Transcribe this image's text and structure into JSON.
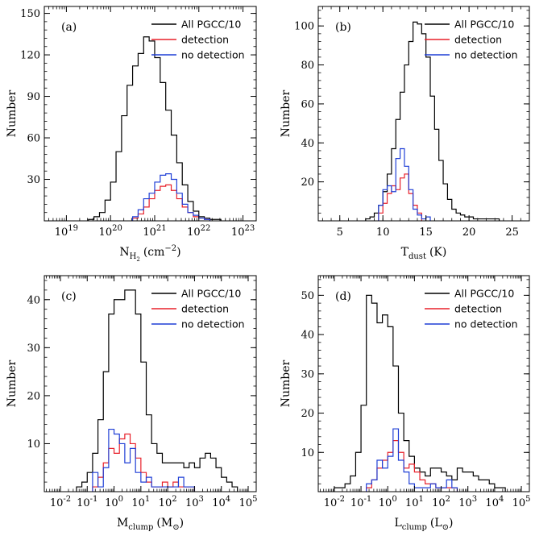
{
  "chart_data": [
    {
      "type": "step-histogram",
      "panel": "(a)",
      "xlabel": "N_{H2} (cm^{-2})",
      "xlabel_main": "N",
      "xlabel_sub": "H",
      "xlabel_subsub": "2",
      "xlabel_unit": "(cm",
      "xlabel_unit_sup": "−2",
      "xlabel_unit_close": ")",
      "ylabel": "Number",
      "x_scale": "log",
      "xlim_log10": [
        18.5,
        23.3
      ],
      "ylim": [
        0,
        155
      ],
      "x_ticks": [
        {
          "base": "10",
          "exp": "19",
          "log10": 19
        },
        {
          "base": "10",
          "exp": "20",
          "log10": 20
        },
        {
          "base": "10",
          "exp": "21",
          "log10": 21
        },
        {
          "base": "10",
          "exp": "22",
          "log10": 22
        },
        {
          "base": "10",
          "exp": "23",
          "log10": 23
        }
      ],
      "y_ticks": [
        "30",
        "60",
        "90",
        "120",
        "150"
      ],
      "y_tick_values": [
        30,
        60,
        90,
        120,
        150
      ],
      "bin_width_log10": 0.125,
      "series": [
        {
          "name": "All PGCC/10",
          "color": "#000000",
          "start_log10": 19.5,
          "values": [
            1,
            3,
            6,
            15,
            28,
            50,
            76,
            98,
            112,
            121,
            133,
            130,
            118,
            100,
            80,
            62,
            42,
            26,
            14,
            7,
            3,
            2,
            1,
            1
          ]
        },
        {
          "name": "detection",
          "color": "#e8202a",
          "start_log10": 20.5,
          "values": [
            2,
            5,
            10,
            16,
            22,
            25,
            26,
            22,
            16,
            10,
            6,
            3,
            2,
            1
          ]
        },
        {
          "name": "no detection",
          "color": "#1f3fd6",
          "start_log10": 20.5,
          "values": [
            3,
            8,
            16,
            20,
            28,
            33,
            34,
            30,
            20,
            12,
            6,
            4,
            2,
            1
          ]
        }
      ],
      "legend": [
        "All PGCC/10",
        "detection",
        "no detection"
      ],
      "legend_position": "top-right"
    },
    {
      "type": "step-histogram",
      "panel": "(b)",
      "xlabel": "T_{dust} (K)",
      "xlabel_main": "T",
      "xlabel_sub": "dust",
      "xlabel_unit": "(K)",
      "ylabel": "Number",
      "x_scale": "linear",
      "xlim": [
        2.5,
        27
      ],
      "ylim": [
        0,
        110
      ],
      "x_ticks": [
        "5",
        "10",
        "15",
        "20",
        "25"
      ],
      "x_tick_values": [
        5,
        10,
        15,
        20,
        25
      ],
      "y_ticks": [
        "20",
        "40",
        "60",
        "80",
        "100"
      ],
      "y_tick_values": [
        20,
        40,
        60,
        80,
        100
      ],
      "bin_width": 0.5,
      "series": [
        {
          "name": "All PGCC/10",
          "color": "#000000",
          "start": 8,
          "values": [
            1,
            2,
            4,
            8,
            15,
            24,
            37,
            52,
            66,
            80,
            92,
            102,
            101,
            96,
            84,
            64,
            47,
            31,
            19,
            11,
            6,
            4,
            3,
            2,
            2,
            1,
            1,
            1,
            1,
            1,
            1
          ]
        },
        {
          "name": "detection",
          "color": "#e8202a",
          "start": 9.5,
          "values": [
            4,
            9,
            14,
            18,
            16,
            22,
            24,
            14,
            8,
            4
          ]
        },
        {
          "name": "no detection",
          "color": "#1f3fd6",
          "start": 9.5,
          "values": [
            8,
            16,
            18,
            15,
            32,
            37,
            28,
            16,
            6,
            3,
            1,
            2
          ]
        }
      ],
      "legend": [
        "All PGCC/10",
        "detection",
        "no detection"
      ],
      "legend_position": "top-right"
    },
    {
      "type": "step-histogram",
      "panel": "(c)",
      "xlabel": "M_{clump} (M_⊙)",
      "xlabel_main": "M",
      "xlabel_sub": "clump",
      "xlabel_unit": "(M",
      "xlabel_unit_sub": "⊙",
      "xlabel_unit_close": ")",
      "ylabel": "Number",
      "x_scale": "log",
      "xlim_log10": [
        -2.6,
        5.3
      ],
      "ylim": [
        0,
        45
      ],
      "x_ticks": [
        {
          "base": "10",
          "exp": "-2",
          "log10": -2
        },
        {
          "base": "10",
          "exp": "-1",
          "log10": -1
        },
        {
          "base": "10",
          "exp": "0",
          "log10": 0
        },
        {
          "base": "10",
          "exp": "1",
          "log10": 1
        },
        {
          "base": "10",
          "exp": "2",
          "log10": 2
        },
        {
          "base": "10",
          "exp": "3",
          "log10": 3
        },
        {
          "base": "10",
          "exp": "4",
          "log10": 4
        },
        {
          "base": "10",
          "exp": "5",
          "log10": 5
        }
      ],
      "y_ticks": [
        "10",
        "20",
        "30",
        "40"
      ],
      "y_tick_values": [
        10,
        20,
        30,
        40
      ],
      "bin_width_log10": 0.2,
      "series": [
        {
          "name": "All PGCC/10",
          "color": "#000000",
          "start_log10": -1.4,
          "values": [
            1,
            2,
            4,
            8,
            15,
            25,
            37,
            40,
            40,
            42,
            42,
            37,
            27,
            16,
            10,
            8,
            6,
            6,
            6,
            6,
            5,
            6,
            5,
            7,
            8,
            7,
            5,
            3,
            2,
            1
          ]
        },
        {
          "name": "detection",
          "color": "#e8202a",
          "start_log10": -0.8,
          "values": [
            1,
            3,
            6,
            9,
            8,
            11,
            12,
            10,
            7,
            4,
            2,
            1,
            1,
            2,
            1,
            2,
            1,
            1,
            1
          ]
        },
        {
          "name": "no detection",
          "color": "#1f3fd6",
          "start_log10": -0.8,
          "values": [
            4,
            1,
            5,
            13,
            12,
            10,
            6,
            9,
            4,
            2,
            3,
            1,
            1,
            1,
            1,
            1,
            3,
            1,
            1
          ]
        }
      ],
      "legend": [
        "All PGCC/10",
        "detection",
        "no detection"
      ],
      "legend_position": "top-right"
    },
    {
      "type": "step-histogram",
      "panel": "(d)",
      "xlabel": "L_{clump} (L_⊙)",
      "xlabel_main": "L",
      "xlabel_sub": "clump",
      "xlabel_unit": "(L",
      "xlabel_unit_sub": "⊙",
      "xlabel_unit_close": ")",
      "ylabel": "Number",
      "x_scale": "log",
      "xlim_log10": [
        -2.6,
        5.3
      ],
      "ylim": [
        0,
        55
      ],
      "x_ticks": [
        {
          "base": "10",
          "exp": "-2",
          "log10": -2
        },
        {
          "base": "10",
          "exp": "-1",
          "log10": -1
        },
        {
          "base": "10",
          "exp": "0",
          "log10": 0
        },
        {
          "base": "10",
          "exp": "1",
          "log10": 1
        },
        {
          "base": "10",
          "exp": "2",
          "log10": 2
        },
        {
          "base": "10",
          "exp": "3",
          "log10": 3
        },
        {
          "base": "10",
          "exp": "4",
          "log10": 4
        },
        {
          "base": "10",
          "exp": "5",
          "log10": 5
        }
      ],
      "y_ticks": [
        "10",
        "20",
        "30",
        "40",
        "50"
      ],
      "y_tick_values": [
        10,
        20,
        30,
        40,
        50
      ],
      "bin_width_log10": 0.2,
      "series": [
        {
          "name": "All PGCC/10",
          "color": "#000000",
          "start_log10": -2.0,
          "values": [
            1,
            1,
            2,
            4,
            10,
            22,
            50,
            48,
            43,
            45,
            42,
            32,
            20,
            13,
            9,
            6,
            5,
            4,
            6,
            6,
            5,
            4,
            3,
            6,
            5,
            5,
            4,
            3,
            3,
            2,
            1,
            1
          ]
        },
        {
          "name": "detection",
          "color": "#e8202a",
          "start_log10": -0.8,
          "values": [
            1,
            3,
            6,
            8,
            10,
            13,
            10,
            6,
            7,
            5,
            3,
            2,
            2,
            1,
            1,
            1,
            1
          ]
        },
        {
          "name": "no detection",
          "color": "#1f3fd6",
          "start_log10": -0.8,
          "values": [
            2,
            3,
            8,
            6,
            9,
            16,
            8,
            5,
            2,
            1,
            1,
            1,
            2,
            1,
            1,
            3,
            1
          ]
        }
      ],
      "legend": [
        "All PGCC/10",
        "detection",
        "no detection"
      ],
      "legend_position": "top-right"
    }
  ]
}
